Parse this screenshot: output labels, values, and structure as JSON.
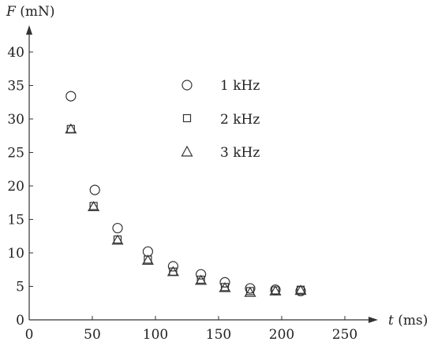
{
  "chart_data": {
    "type": "scatter",
    "xlabel_var": "t",
    "xlabel_unit": " (ms)",
    "ylabel_var": "F",
    "ylabel_unit": " (mN)",
    "xlim": [
      0,
      265
    ],
    "ylim": [
      0,
      43
    ],
    "x_ticks": [
      0,
      50,
      100,
      150,
      200,
      250
    ],
    "y_ticks": [
      0,
      5,
      10,
      15,
      20,
      25,
      30,
      35,
      40
    ],
    "legend_position": "upper-center",
    "series": [
      {
        "name": "1 kHz",
        "marker": "circle",
        "x": [
          33,
          52,
          70,
          94,
          114,
          136,
          155,
          175,
          195,
          215
        ],
        "y": [
          33.4,
          19.4,
          13.7,
          10.2,
          8.0,
          6.8,
          5.6,
          4.7,
          4.5,
          4.3
        ]
      },
      {
        "name": "2 kHz",
        "marker": "square",
        "x": [
          33,
          51,
          70,
          94,
          114,
          136,
          155,
          175,
          195,
          215
        ],
        "y": [
          28.5,
          17.0,
          12.0,
          9.0,
          7.2,
          6.0,
          4.9,
          4.3,
          4.4,
          4.5
        ]
      },
      {
        "name": "3 kHz",
        "marker": "triangle",
        "x": [
          33,
          51,
          70,
          94,
          114,
          136,
          155,
          175,
          195,
          215
        ],
        "y": [
          28.5,
          16.9,
          11.9,
          8.9,
          7.2,
          5.9,
          4.8,
          4.1,
          4.3,
          4.4
        ]
      }
    ]
  }
}
